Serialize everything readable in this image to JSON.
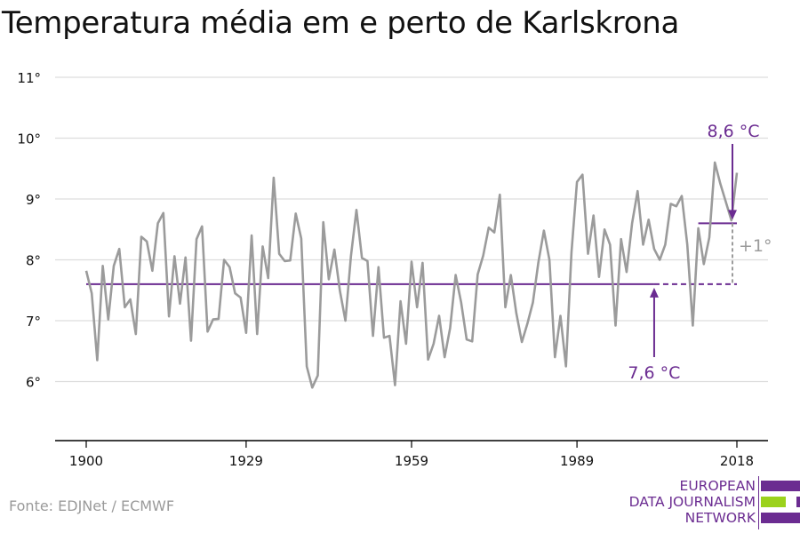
{
  "title": "Temperatura média em e perto de Karlskrona",
  "source": "Fonte: EDJNet / ECMWF",
  "logo": {
    "line1": "EUROPEAN",
    "line2": "DATA JOURNALISM",
    "line3": "NETWORK"
  },
  "colors": {
    "series": "#9b9b9b",
    "annotation": "#6b2c91",
    "difference": "#9b9b9b",
    "grid": "#dddddd",
    "axis": "#000000",
    "logo_green": "#9bd21c"
  },
  "chart_data": {
    "type": "line",
    "title": "Temperatura média em e perto de Karlskrona",
    "xlabel": "",
    "ylabel": "",
    "xlim": [
      1900,
      2018
    ],
    "ylim": [
      5,
      11
    ],
    "x_ticks": [
      1900,
      1929,
      1959,
      1989,
      2018
    ],
    "y_ticks": [
      {
        "value": 6,
        "label": "6°"
      },
      {
        "value": 7,
        "label": "7°"
      },
      {
        "value": 8,
        "label": "8°"
      },
      {
        "value": 9,
        "label": "9°"
      },
      {
        "value": 10,
        "label": "10°"
      },
      {
        "value": 11,
        "label": "11°"
      }
    ],
    "grid": true,
    "series": [
      {
        "x_start": 1900,
        "x_end": 2018,
        "values": [
          7.82,
          7.45,
          6.35,
          7.9,
          7.02,
          7.9,
          8.18,
          7.22,
          7.35,
          6.78,
          8.38,
          8.3,
          7.82,
          8.6,
          8.77,
          7.07,
          8.06,
          7.28,
          8.04,
          6.67,
          8.34,
          8.55,
          6.82,
          7.02,
          7.03,
          8.0,
          7.88,
          7.45,
          7.38,
          6.8,
          8.4,
          6.78,
          8.22,
          7.7,
          9.35,
          8.1,
          7.98,
          7.99,
          8.76,
          8.35,
          6.25,
          5.9,
          6.1,
          8.62,
          7.68,
          8.17,
          7.49,
          7.0,
          8.06,
          8.82,
          8.03,
          7.98,
          6.75,
          7.88,
          6.72,
          6.75,
          5.94,
          7.32,
          6.62,
          7.97,
          7.22,
          7.95,
          6.36,
          6.62,
          7.08,
          6.4,
          6.88,
          7.75,
          7.3,
          6.69,
          6.66,
          7.76,
          8.07,
          8.53,
          8.45,
          9.07,
          7.22,
          7.75,
          7.12,
          6.65,
          6.95,
          7.3,
          7.96,
          8.48,
          8.0,
          6.4,
          7.08,
          6.25,
          8.12,
          9.28,
          9.4,
          8.1,
          8.73,
          7.72,
          8.5,
          8.25,
          6.92,
          8.34,
          7.8,
          8.6,
          9.13,
          8.25,
          8.66,
          8.18,
          8.0,
          8.25,
          8.92,
          8.88,
          9.05,
          8.25,
          6.92,
          8.52,
          7.93,
          8.37,
          9.6,
          9.25,
          8.95,
          8.65,
          9.43
        ]
      }
    ],
    "annotations": {
      "baseline": {
        "value": 7.6,
        "x_from": 1900,
        "x_solid_to": 2003,
        "x_dashed_to": 2018,
        "label": "7,6 °C",
        "arrow_at": 2003
      },
      "recent": {
        "value": 8.6,
        "x_from": 2011,
        "x_to": 2018,
        "label": "8,6 °C",
        "arrow_at": 2018
      },
      "difference": {
        "x": 2018,
        "label": "+1°"
      }
    }
  }
}
